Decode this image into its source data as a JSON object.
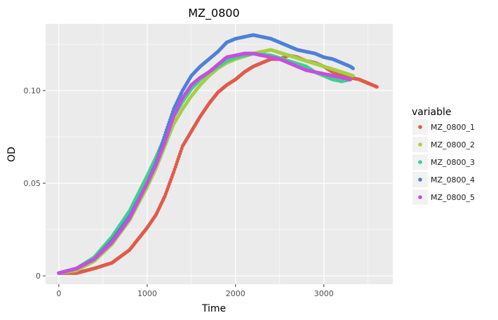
{
  "chart_data": {
    "type": "scatter",
    "title": "MZ_0800",
    "xlabel": "Time",
    "ylabel": "OD",
    "xlim": [
      -150,
      3780
    ],
    "ylim": [
      -0.0045,
      0.136
    ],
    "x_ticks": [
      0,
      1000,
      2000,
      3000
    ],
    "x_tick_labels": [
      "0",
      "1000",
      "2000",
      "3000"
    ],
    "y_ticks": [
      0,
      0.05,
      0.1
    ],
    "y_tick_labels": [
      "0",
      "0.05",
      "0.10"
    ],
    "grid": true,
    "background": "#ebebeb",
    "legend": {
      "title": "variable",
      "position": "right"
    },
    "series": [
      {
        "name": "MZ_0800_1",
        "color": "#e05b4c",
        "points": [
          [
            0,
            0.0015
          ],
          [
            200,
            0.0015
          ],
          [
            400,
            0.004
          ],
          [
            600,
            0.007
          ],
          [
            800,
            0.014
          ],
          [
            1000,
            0.026
          ],
          [
            1100,
            0.033
          ],
          [
            1200,
            0.043
          ],
          [
            1300,
            0.056
          ],
          [
            1400,
            0.07
          ],
          [
            1500,
            0.078
          ],
          [
            1600,
            0.086
          ],
          [
            1700,
            0.093
          ],
          [
            1800,
            0.099
          ],
          [
            1900,
            0.103
          ],
          [
            2000,
            0.106
          ],
          [
            2100,
            0.11
          ],
          [
            2200,
            0.113
          ],
          [
            2300,
            0.115
          ],
          [
            2400,
            0.117
          ],
          [
            2500,
            0.117
          ],
          [
            2600,
            0.119
          ],
          [
            2700,
            0.118
          ],
          [
            2800,
            0.116
          ],
          [
            2900,
            0.115
          ],
          [
            3000,
            0.113
          ],
          [
            3100,
            0.11
          ],
          [
            3200,
            0.108
          ],
          [
            3300,
            0.107
          ],
          [
            3400,
            0.106
          ],
          [
            3500,
            0.104
          ],
          [
            3600,
            0.102
          ]
        ]
      },
      {
        "name": "MZ_0800_2",
        "color": "#a3d046",
        "points": [
          [
            0,
            0.0015
          ],
          [
            200,
            0.003
          ],
          [
            400,
            0.008
          ],
          [
            600,
            0.017
          ],
          [
            800,
            0.03
          ],
          [
            1000,
            0.048
          ],
          [
            1100,
            0.058
          ],
          [
            1200,
            0.07
          ],
          [
            1300,
            0.082
          ],
          [
            1400,
            0.09
          ],
          [
            1500,
            0.097
          ],
          [
            1600,
            0.103
          ],
          [
            1700,
            0.108
          ],
          [
            1800,
            0.112
          ],
          [
            1900,
            0.115
          ],
          [
            2000,
            0.117
          ],
          [
            2200,
            0.12
          ],
          [
            2400,
            0.122
          ],
          [
            2600,
            0.119
          ],
          [
            2800,
            0.116
          ],
          [
            3000,
            0.113
          ],
          [
            3200,
            0.11
          ],
          [
            3330,
            0.108
          ]
        ]
      },
      {
        "name": "MZ_0800_3",
        "color": "#3ecf8e",
        "points": [
          [
            0,
            0.0015
          ],
          [
            200,
            0.004
          ],
          [
            400,
            0.01
          ],
          [
            600,
            0.021
          ],
          [
            800,
            0.035
          ],
          [
            1000,
            0.054
          ],
          [
            1100,
            0.064
          ],
          [
            1200,
            0.075
          ],
          [
            1300,
            0.086
          ],
          [
            1400,
            0.094
          ],
          [
            1500,
            0.101
          ],
          [
            1600,
            0.106
          ],
          [
            1700,
            0.11
          ],
          [
            1800,
            0.113
          ],
          [
            1900,
            0.116
          ],
          [
            2000,
            0.118
          ],
          [
            2200,
            0.12
          ],
          [
            2400,
            0.119
          ],
          [
            2600,
            0.116
          ],
          [
            2800,
            0.113
          ],
          [
            2900,
            0.11
          ],
          [
            3000,
            0.108
          ],
          [
            3100,
            0.106
          ],
          [
            3200,
            0.105
          ],
          [
            3300,
            0.106
          ]
        ]
      },
      {
        "name": "MZ_0800_4",
        "color": "#4f80d8",
        "points": [
          [
            0,
            0.0015
          ],
          [
            200,
            0.004
          ],
          [
            400,
            0.009
          ],
          [
            600,
            0.019
          ],
          [
            800,
            0.032
          ],
          [
            1000,
            0.05
          ],
          [
            1100,
            0.061
          ],
          [
            1200,
            0.076
          ],
          [
            1300,
            0.09
          ],
          [
            1400,
            0.1
          ],
          [
            1500,
            0.108
          ],
          [
            1600,
            0.113
          ],
          [
            1700,
            0.117
          ],
          [
            1800,
            0.121
          ],
          [
            1900,
            0.126
          ],
          [
            2000,
            0.128
          ],
          [
            2100,
            0.129
          ],
          [
            2200,
            0.13
          ],
          [
            2300,
            0.129
          ],
          [
            2400,
            0.128
          ],
          [
            2500,
            0.126
          ],
          [
            2600,
            0.124
          ],
          [
            2700,
            0.122
          ],
          [
            2800,
            0.121
          ],
          [
            2900,
            0.12
          ],
          [
            3000,
            0.118
          ],
          [
            3100,
            0.117
          ],
          [
            3200,
            0.115
          ],
          [
            3300,
            0.113
          ],
          [
            3330,
            0.112
          ]
        ]
      },
      {
        "name": "MZ_0800_5",
        "color": "#c64fde",
        "points": [
          [
            0,
            0.0015
          ],
          [
            200,
            0.004
          ],
          [
            400,
            0.009
          ],
          [
            600,
            0.018
          ],
          [
            800,
            0.031
          ],
          [
            1000,
            0.05
          ],
          [
            1100,
            0.06
          ],
          [
            1200,
            0.072
          ],
          [
            1300,
            0.086
          ],
          [
            1400,
            0.096
          ],
          [
            1500,
            0.103
          ],
          [
            1600,
            0.107
          ],
          [
            1700,
            0.11
          ],
          [
            1800,
            0.114
          ],
          [
            1900,
            0.118
          ],
          [
            2000,
            0.119
          ],
          [
            2100,
            0.12
          ],
          [
            2200,
            0.12
          ],
          [
            2300,
            0.119
          ],
          [
            2400,
            0.118
          ],
          [
            2500,
            0.117
          ],
          [
            2600,
            0.115
          ],
          [
            2700,
            0.113
          ],
          [
            2800,
            0.111
          ],
          [
            2900,
            0.11
          ],
          [
            3000,
            0.109
          ],
          [
            3100,
            0.108
          ],
          [
            3200,
            0.107
          ],
          [
            3300,
            0.106
          ]
        ]
      }
    ]
  }
}
